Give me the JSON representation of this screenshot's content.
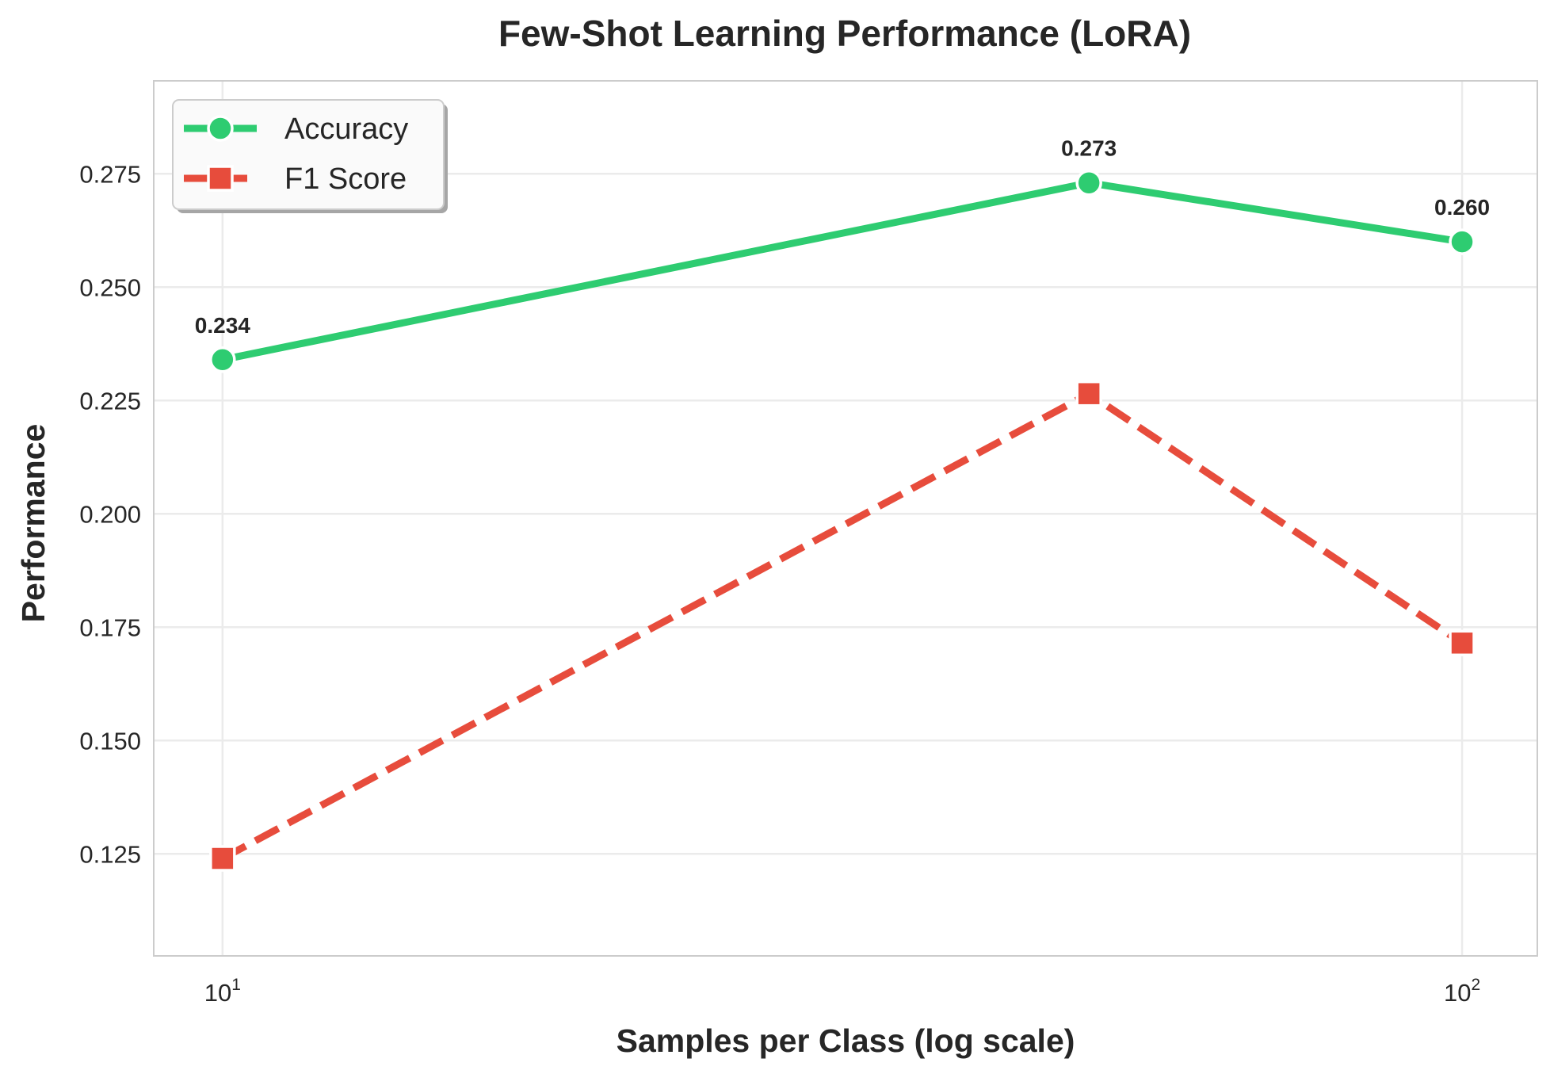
{
  "chart_data": {
    "type": "line",
    "title": "Few-Shot Learning Performance (LoRA)",
    "xlabel": "Samples per Class (log scale)",
    "ylabel": "Performance",
    "x_scale": "log",
    "x": [
      10,
      50,
      100
    ],
    "xlim": [
      8.8,
      115
    ],
    "ylim": [
      0.1025,
      0.2955
    ],
    "x_ticks": [
      {
        "value": 10,
        "base": "10",
        "exp": "1"
      },
      {
        "value": 100,
        "base": "10",
        "exp": "2"
      }
    ],
    "y_ticks": [
      {
        "value": 0.125,
        "label": "0.125"
      },
      {
        "value": 0.15,
        "label": "0.150"
      },
      {
        "value": 0.175,
        "label": "0.175"
      },
      {
        "value": 0.2,
        "label": "0.200"
      },
      {
        "value": 0.225,
        "label": "0.225"
      },
      {
        "value": 0.25,
        "label": "0.250"
      },
      {
        "value": 0.275,
        "label": "0.275"
      }
    ],
    "series": [
      {
        "name": "Accuracy",
        "values": [
          0.234,
          0.273,
          0.26
        ],
        "data_labels": [
          "0.234",
          "0.273",
          "0.260"
        ],
        "color": "#2ecc71",
        "line_style": "solid",
        "marker": "circle"
      },
      {
        "name": "F1 Score",
        "values": [
          0.124,
          0.2265,
          0.1715
        ],
        "color": "#e74c3c",
        "line_style": "dashed",
        "marker": "square"
      }
    ],
    "grid": true,
    "legend_position": "top-left"
  }
}
